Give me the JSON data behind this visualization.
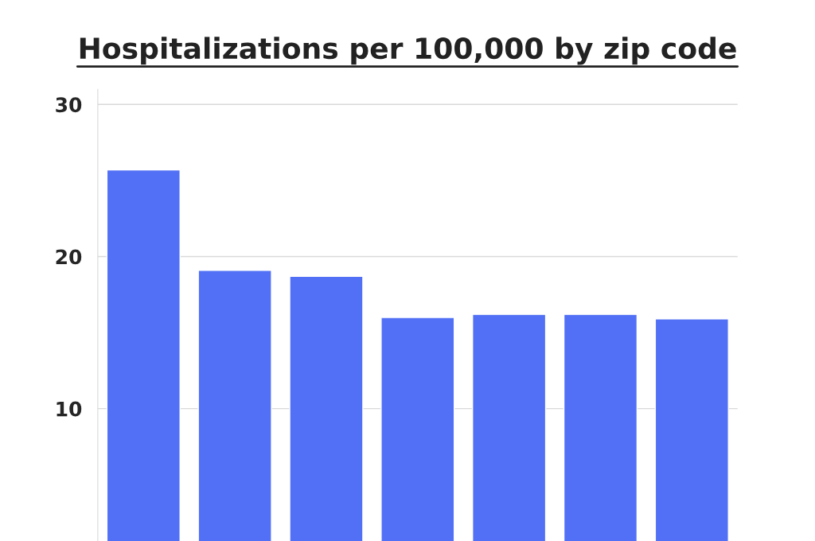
{
  "chart_data": {
    "type": "bar",
    "title": "Hospitalizations per 100,000 by zip code",
    "categories": [
      null,
      null,
      null,
      null,
      null,
      null,
      null
    ],
    "values": [
      25.7,
      19.1,
      18.7,
      16.0,
      16.2,
      16.2,
      15.9
    ],
    "color": "#5170f5",
    "ylim": [
      1.3,
      31
    ],
    "yticks": [
      10,
      20,
      30
    ],
    "grid": "y"
  }
}
